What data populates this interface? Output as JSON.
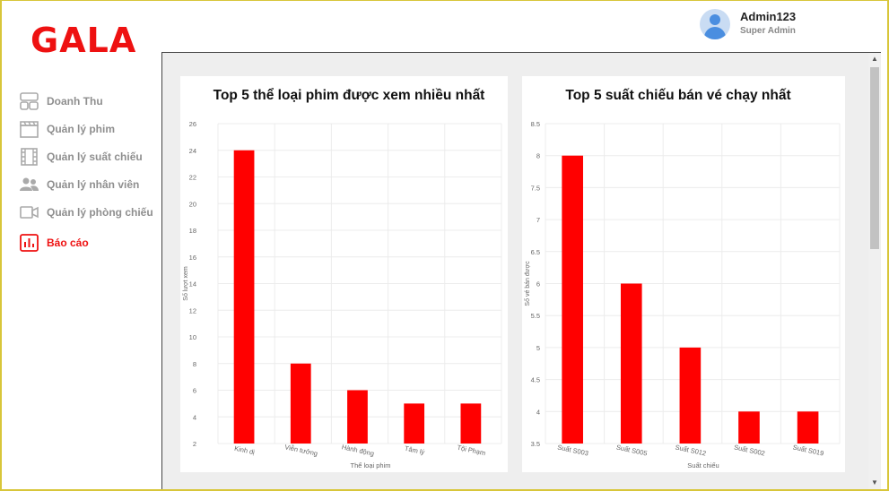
{
  "app": {
    "logo": "GALA"
  },
  "user": {
    "name": "Admin123",
    "role": "Super Admin"
  },
  "nav": {
    "items": [
      {
        "label": "Doanh Thu",
        "icon": "dashboard-icon",
        "active": false
      },
      {
        "label": "Quản lý phim",
        "icon": "clapperboard-icon",
        "active": false
      },
      {
        "label": "Quản lý suất chiếu",
        "icon": "film-strip-icon",
        "active": false
      },
      {
        "label": "Quản lý nhân viên",
        "icon": "people-icon",
        "active": false
      },
      {
        "label": "Quản lý phòng chiếu",
        "icon": "video-camera-icon",
        "active": false
      },
      {
        "label": "Báo cáo",
        "icon": "bar-chart-icon",
        "active": true
      }
    ]
  },
  "colors": {
    "accent": "#ee1111",
    "bar": "#ff0000",
    "nav_text": "#8f8f8f"
  },
  "chart_data": [
    {
      "type": "bar",
      "title": "Top 5 thể loại phim được xem nhiều nhất",
      "xlabel": "Thể loại phim",
      "ylabel": "Số lượt xem",
      "categories": [
        "Kinh dị",
        "Viễn tưởng",
        "Hành động",
        "Tâm lý",
        "Tội Phạm"
      ],
      "values": [
        24,
        8,
        6,
        5,
        5
      ],
      "ylim": [
        2,
        26
      ],
      "yticks": [
        2,
        4,
        6,
        8,
        10,
        12,
        14,
        16,
        18,
        20,
        22,
        24,
        26
      ],
      "grid": true
    },
    {
      "type": "bar",
      "title": "Top 5 suất chiếu bán vé chạy nhất",
      "xlabel": "Suất chiếu",
      "ylabel": "Số vé bán được",
      "categories": [
        "Suất S003",
        "Suất S005",
        "Suất S012",
        "Suất S002",
        "Suất S019"
      ],
      "values": [
        8,
        6,
        5,
        4,
        4
      ],
      "ylim": [
        3.5,
        8.5
      ],
      "yticks": [
        3.5,
        4,
        4.5,
        5,
        5.5,
        6,
        6.5,
        7,
        7.5,
        8,
        8.5
      ],
      "grid": true
    }
  ]
}
